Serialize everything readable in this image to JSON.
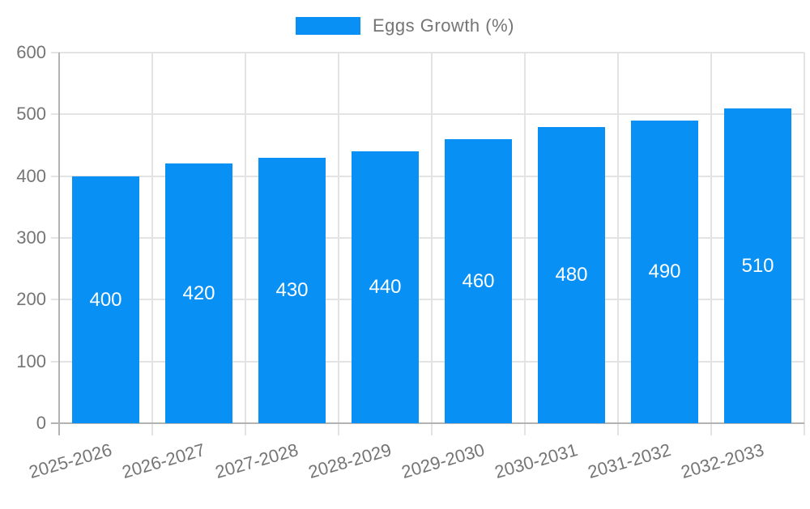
{
  "chart_data": {
    "type": "bar",
    "title": "",
    "legend": {
      "position": "top"
    },
    "categories": [
      "2025-2026",
      "2026-2027",
      "2027-2028",
      "2028-2029",
      "2029-2030",
      "2030-2031",
      "2031-2032",
      "2032-2033"
    ],
    "series": [
      {
        "name": "Eggs Growth (%)",
        "values": [
          400,
          420,
          430,
          440,
          460,
          480,
          490,
          510
        ]
      }
    ],
    "bar_value_labels": [
      "400",
      "420",
      "430",
      "440",
      "460",
      "480",
      "490",
      "510"
    ],
    "yticks": [
      "0",
      "100",
      "200",
      "300",
      "400",
      "500",
      "600"
    ],
    "ytick_values": [
      0,
      100,
      200,
      300,
      400,
      500,
      600
    ],
    "ylim": [
      0,
      600
    ],
    "grid": true,
    "colors": {
      "bar": "#0990f5",
      "gridline": "#e3e3e3",
      "axis": "#b3b3b3",
      "tick_text": "#757575",
      "bar_label_text": "#ffffff",
      "background": "#ffffff"
    }
  }
}
